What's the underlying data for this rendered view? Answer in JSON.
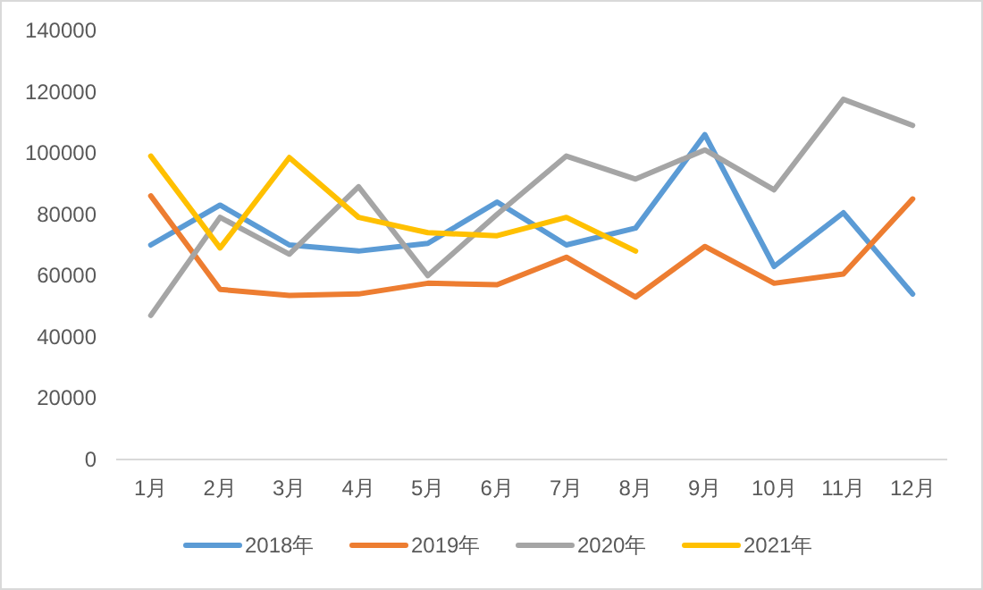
{
  "chart_data": {
    "type": "line",
    "categories": [
      "1月",
      "2月",
      "3月",
      "4月",
      "5月",
      "6月",
      "7月",
      "8月",
      "9月",
      "10月",
      "11月",
      "12月"
    ],
    "series": [
      {
        "name": "2018年",
        "color": "#5b9bd5",
        "values": [
          70000,
          83000,
          70000,
          68000,
          70500,
          84000,
          70000,
          75500,
          106000,
          63000,
          80500,
          54000
        ]
      },
      {
        "name": "2019年",
        "color": "#ed7d31",
        "values": [
          86000,
          55500,
          53500,
          54000,
          57500,
          57000,
          66000,
          53000,
          69500,
          57500,
          60500,
          85000
        ]
      },
      {
        "name": "2020年",
        "color": "#a5a5a5",
        "values": [
          47000,
          79000,
          67000,
          89000,
          60000,
          80000,
          99000,
          91500,
          101000,
          88000,
          117500,
          109000
        ]
      },
      {
        "name": "2021年",
        "color": "#ffc000",
        "values": [
          99000,
          69000,
          98500,
          79000,
          74000,
          73000,
          79000,
          68000,
          null,
          null,
          null,
          null
        ]
      }
    ],
    "ylim": [
      0,
      140000
    ],
    "yticks": [
      0,
      20000,
      40000,
      60000,
      80000,
      100000,
      120000,
      140000
    ],
    "grid": false,
    "legend": "bottom",
    "marker": "none",
    "line_style": "solid"
  }
}
